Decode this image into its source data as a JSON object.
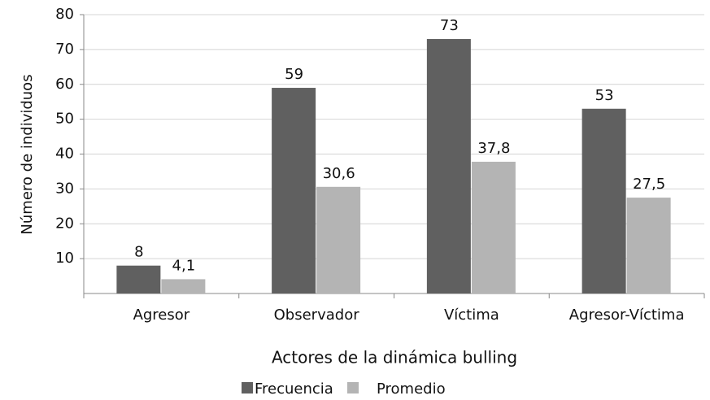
{
  "chart_data": {
    "type": "bar",
    "xlabel": "Actores de la dinámica bulling",
    "ylabel": "Número de individuos",
    "categories": [
      "Agresor",
      "Observador",
      "Víctima",
      "Agresor-Víctima"
    ],
    "series": [
      {
        "name": "Frecuencia",
        "color": "#606060",
        "values": [
          8,
          59,
          73,
          53
        ]
      },
      {
        "name": "Promedio",
        "color": "#b4b4b4",
        "values": [
          4.1,
          30.6,
          37.8,
          27.5
        ],
        "value_labels": [
          "4,1",
          "30,6",
          "37,8",
          "27,5"
        ]
      }
    ],
    "ylim": [
      0,
      80
    ],
    "yticks": [
      10,
      20,
      30,
      40,
      50,
      60,
      70,
      80
    ],
    "grid": true,
    "legend": "bottom"
  }
}
